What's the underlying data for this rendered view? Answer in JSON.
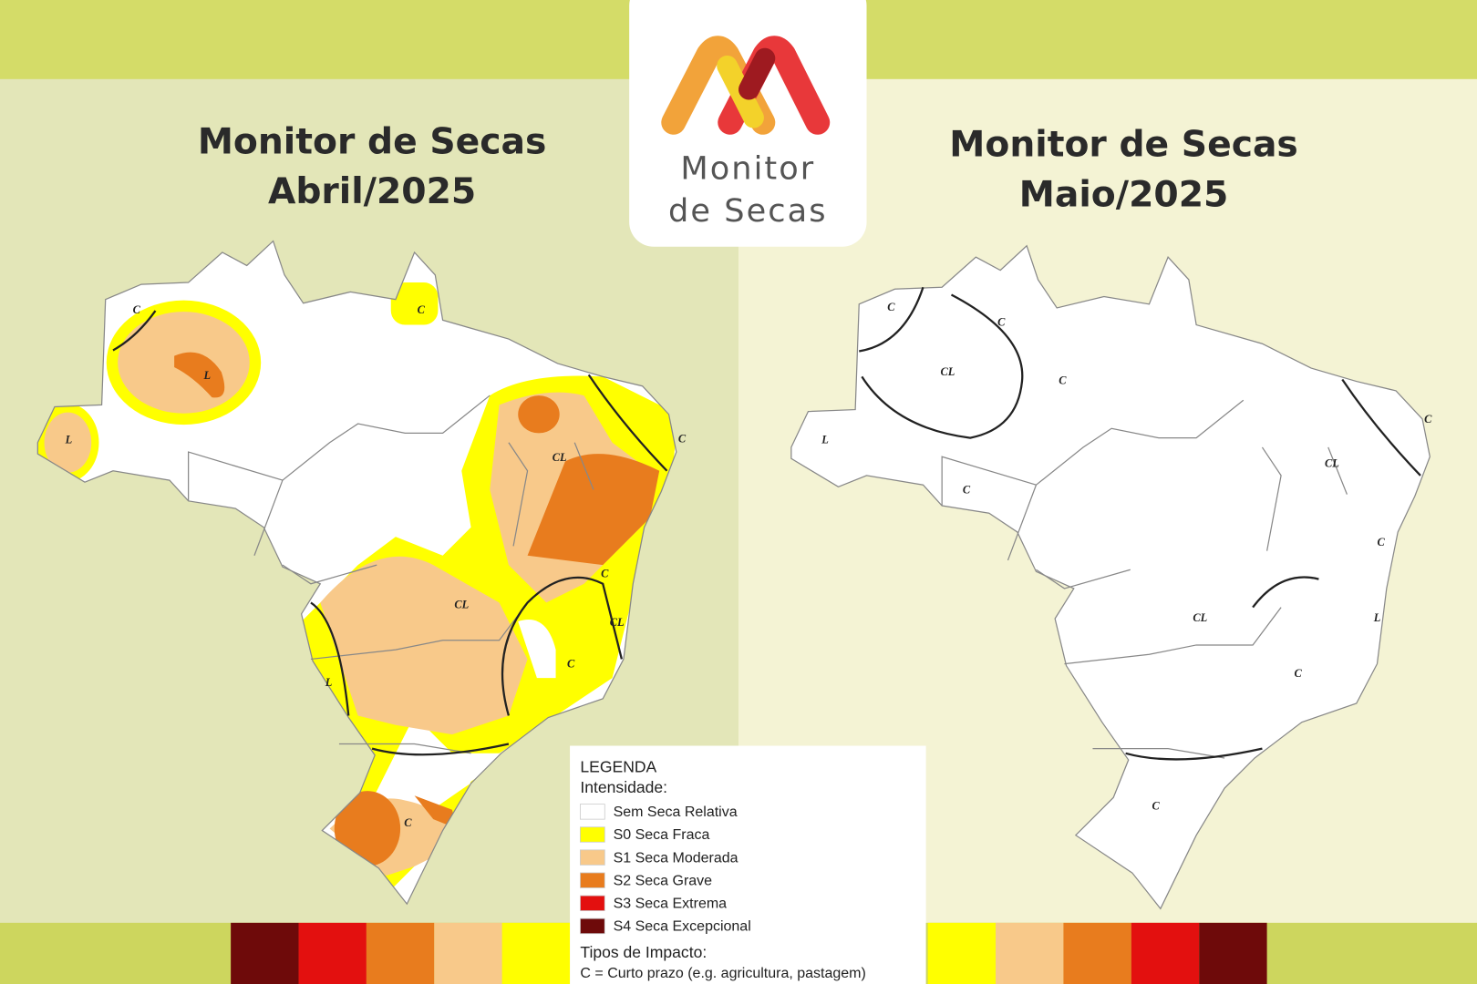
{
  "logo": {
    "line1": "Monitor",
    "line2": "de Secas"
  },
  "maps": [
    {
      "title": "Monitor de Secas",
      "subtitle": "Abril/2025",
      "labels": [
        "C",
        "C",
        "L",
        "L",
        "CL",
        "C",
        "C",
        "CL",
        "CL",
        "C",
        "L",
        "C"
      ]
    },
    {
      "title": "Monitor de Secas",
      "subtitle": "Maio/2025",
      "labels": [
        "C",
        "C",
        "CL",
        "C",
        "L",
        "C",
        "C",
        "CL",
        "C",
        "CL",
        "L",
        "C",
        "C"
      ]
    }
  ],
  "legend": {
    "title": "LEGENDA",
    "intensity_heading": "Intensidade:",
    "items": [
      {
        "label": "Sem Seca Relativa",
        "color": "#ffffff"
      },
      {
        "label": "S0 Seca Fraca",
        "color": "#ffff00"
      },
      {
        "label": "S1 Seca Moderada",
        "color": "#f8c98a"
      },
      {
        "label": "S2 Seca Grave",
        "color": "#e87c1e"
      },
      {
        "label": "S3 Seca Extrema",
        "color": "#e3100f"
      },
      {
        "label": "S4 Seca Excepcional",
        "color": "#6e0a0a"
      }
    ],
    "impact_heading": "Tipos de Impacto:",
    "impact_note": "C = Curto prazo (e.g. agricultura, pastagem)"
  }
}
